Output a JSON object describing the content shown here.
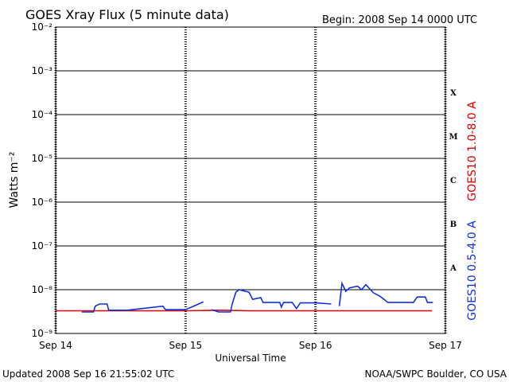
{
  "chart_data": {
    "type": "line",
    "title": "GOES Xray Flux (5 minute data)",
    "subtitle": "Begin:  2008 Sep 14 0000 UTC",
    "x_label": "Universal Time",
    "y_label": "Watts m⁻²",
    "footer_left": "Updated 2008 Sep 16 21:55:02 UTC",
    "footer_right": "NOAA/SWPC Boulder, CO USA",
    "log_scale": true,
    "grid": true,
    "xlim": [
      0,
      72
    ],
    "xticks": [
      {
        "value": 0,
        "label": "Sep 14"
      },
      {
        "value": 24,
        "label": "Sep 15"
      },
      {
        "value": 48,
        "label": "Sep 16"
      },
      {
        "value": 72,
        "label": "Sep 17"
      }
    ],
    "ylim": [
      1e-09,
      0.01
    ],
    "yticks": [
      {
        "value": 1e-09,
        "label": "10⁻⁹"
      },
      {
        "value": 1e-08,
        "label": "10⁻⁸"
      },
      {
        "value": 1e-07,
        "label": "10⁻⁷"
      },
      {
        "value": 1e-06,
        "label": "10⁻⁶"
      },
      {
        "value": 1e-05,
        "label": "10⁻⁵"
      },
      {
        "value": 0.0001,
        "label": "10⁻⁴"
      },
      {
        "value": 0.001,
        "label": "10⁻³"
      },
      {
        "value": 0.01,
        "label": "10⁻²"
      }
    ],
    "flare_classes": [
      {
        "label": "A",
        "value": 3.2e-08
      },
      {
        "label": "B",
        "value": 3.2e-07
      },
      {
        "label": "C",
        "value": 3.2e-06
      },
      {
        "label": "M",
        "value": 3.2e-05
      },
      {
        "label": "X",
        "value": 0.00032
      }
    ],
    "series": [
      {
        "name": "GOES10 1.0-8.0 A",
        "color": "#e00000",
        "x": [
          0,
          12,
          24,
          30,
          36,
          48,
          60,
          69.5
        ],
        "values": [
          3.3e-09,
          3.3e-09,
          3.3e-09,
          3.4e-09,
          3.3e-09,
          3.3e-09,
          3.3e-09,
          3.3e-09
        ]
      },
      {
        "name": "GOES10 0.5-4.0 A",
        "color": "#1030e0",
        "x": [
          4.8,
          7.0,
          7.3,
          8.1,
          9.5,
          9.8,
          13.2,
          19.8,
          20.3,
          24,
          26.4,
          27.3,
          28,
          28.8,
          30.1,
          32.3,
          32.6,
          33.3,
          33.9,
          35.7,
          36.4,
          37.9,
          38.3,
          41.4,
          41.7,
          42.1,
          43.7,
          44.5,
          45.2,
          48.2,
          50.9,
          51.6,
          52.4,
          52.9,
          53.6,
          54.3,
          55.8,
          56.5,
          57.3,
          58.7,
          59.9,
          61.4,
          66.1,
          66.8,
          68.3,
          68.7,
          69.7
        ],
        "values": [
          3.1e-09,
          3.1e-09,
          4.2e-09,
          4.7e-09,
          4.7e-09,
          3.4e-09,
          3.4e-09,
          4.2e-09,
          3.5e-09,
          3.5e-09,
          4.7e-09,
          5.3e-09,
          null,
          3.5e-09,
          3.1e-09,
          3.1e-09,
          4.7e-09,
          8.8e-09,
          1e-08,
          8.8e-09,
          6e-09,
          6.6e-09,
          5.1e-09,
          5.1e-09,
          4e-09,
          5.1e-09,
          5.1e-09,
          3.7e-09,
          5e-09,
          5e-09,
          4.7e-09,
          null,
          4.2e-09,
          1.4e-08,
          9.2e-09,
          1.1e-08,
          1.2e-08,
          1e-08,
          1.3e-08,
          8.5e-09,
          7.1e-09,
          5.1e-09,
          5.1e-09,
          6.8e-09,
          6.8e-09,
          5.1e-09,
          5.1e-09
        ]
      }
    ]
  }
}
